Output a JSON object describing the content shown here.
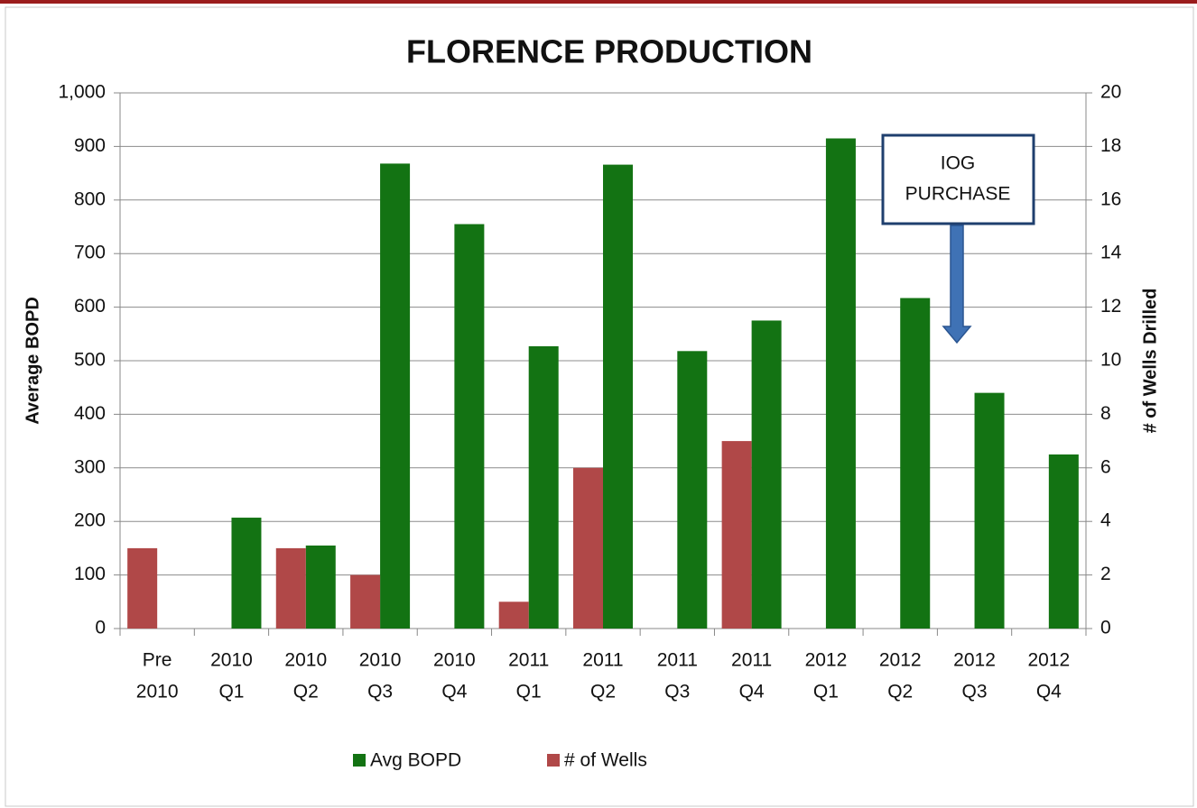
{
  "chart_data": {
    "type": "bar",
    "title": "FLORENCE PRODUCTION",
    "y_label": "Average BOPD",
    "y2_label": "# of Wells Drilled",
    "categories": [
      [
        "Pre",
        "2010"
      ],
      [
        "2010",
        "Q1"
      ],
      [
        "2010",
        "Q2"
      ],
      [
        "2010",
        "Q3"
      ],
      [
        "2010",
        "Q4"
      ],
      [
        "2011",
        "Q1"
      ],
      [
        "2011",
        "Q2"
      ],
      [
        "2011",
        "Q3"
      ],
      [
        "2011",
        "Q4"
      ],
      [
        "2012",
        "Q1"
      ],
      [
        "2012",
        "Q2"
      ],
      [
        "2012",
        "Q3"
      ],
      [
        "2012",
        "Q4"
      ]
    ],
    "series": [
      {
        "name": "Avg BOPD",
        "color": "#137313",
        "values": [
          0,
          207,
          155,
          868,
          755,
          527,
          866,
          518,
          575,
          915,
          617,
          440,
          325
        ]
      },
      {
        "name": "# of Wells",
        "color": "#b04848",
        "axis": "y2",
        "values": [
          3,
          0,
          3,
          2,
          0,
          1,
          6,
          0,
          7,
          0,
          0,
          0,
          0
        ]
      }
    ],
    "ylim": [
      0,
      1000
    ],
    "yticks": [
      0,
      100,
      200,
      300,
      400,
      500,
      600,
      700,
      800,
      900,
      {
        "value": 1000,
        "label": "1,000"
      }
    ],
    "y2lim": [
      0,
      20
    ],
    "y2ticks": [
      0,
      2,
      4,
      6,
      8,
      10,
      12,
      14,
      16,
      18,
      20
    ],
    "grid": true,
    "legend": "bottom",
    "annotation": [
      "IOG",
      "PURCHASE"
    ]
  }
}
